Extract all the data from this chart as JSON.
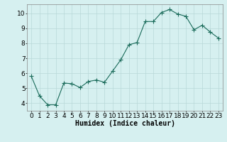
{
  "x": [
    0,
    1,
    2,
    3,
    4,
    5,
    6,
    7,
    8,
    9,
    10,
    11,
    12,
    13,
    14,
    15,
    16,
    17,
    18,
    19,
    20,
    21,
    22,
    23
  ],
  "y": [
    5.8,
    4.5,
    3.9,
    3.9,
    5.35,
    5.3,
    5.05,
    5.45,
    5.55,
    5.4,
    6.15,
    6.9,
    7.9,
    8.05,
    9.45,
    9.45,
    10.05,
    10.25,
    9.95,
    9.8,
    8.9,
    9.2,
    8.75,
    8.35
  ],
  "line_color": "#1a6b5a",
  "marker": "+",
  "marker_size": 4,
  "bg_color": "#d6f0f0",
  "grid_color": "#b8d8d8",
  "xlabel": "Humidex (Indice chaleur)",
  "xlabel_fontsize": 7,
  "tick_fontsize": 6.5,
  "ylim": [
    3.5,
    10.6
  ],
  "xlim": [
    -0.5,
    23.5
  ],
  "yticks": [
    4,
    5,
    6,
    7,
    8,
    9,
    10
  ],
  "xticks": [
    0,
    1,
    2,
    3,
    4,
    5,
    6,
    7,
    8,
    9,
    10,
    11,
    12,
    13,
    14,
    15,
    16,
    17,
    18,
    19,
    20,
    21,
    22,
    23
  ]
}
